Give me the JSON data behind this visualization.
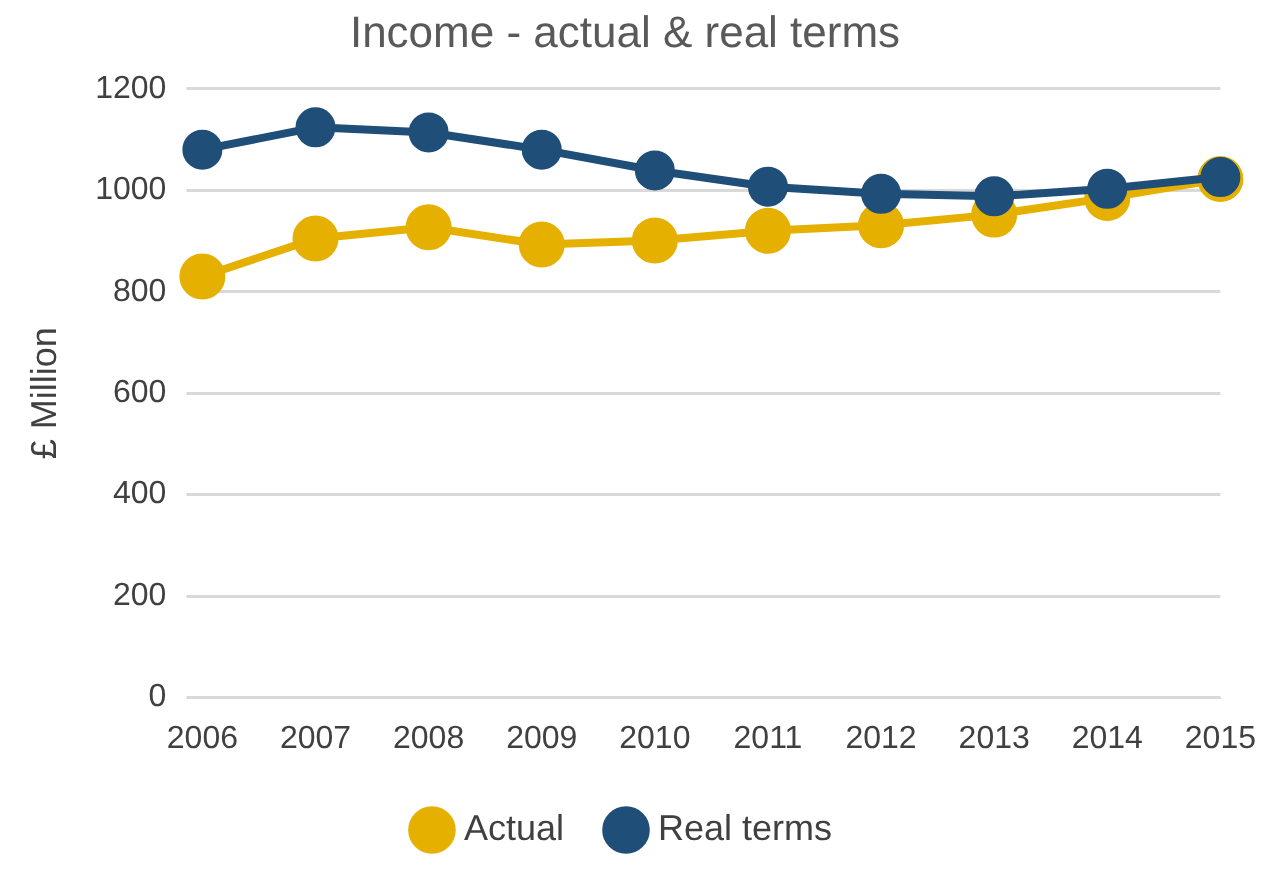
{
  "chart_data": {
    "type": "line",
    "title": "Income - actual & real terms",
    "ylabel": "£ Million",
    "categories": [
      "2006",
      "2007",
      "2008",
      "2009",
      "2010",
      "2011",
      "2012",
      "2013",
      "2014",
      "2015"
    ],
    "series": [
      {
        "name": "Actual",
        "color": "#e6b000",
        "values": [
          830,
          905,
          927,
          893,
          901,
          920,
          931,
          952,
          985,
          1022
        ]
      },
      {
        "name": "Real terms",
        "color": "#1f4e79",
        "values": [
          1080,
          1124,
          1114,
          1080,
          1039,
          1007,
          993,
          988,
          1003,
          1026
        ]
      }
    ],
    "ylim": [
      0,
      1200
    ],
    "yticks": [
      0,
      200,
      400,
      600,
      800,
      1000,
      1200
    ],
    "grid": "y",
    "legend": "bottom",
    "marker": "circle",
    "line_style": "solid"
  }
}
